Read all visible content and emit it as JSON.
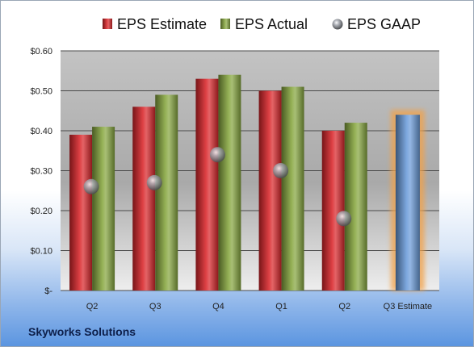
{
  "company": "Skyworks Solutions",
  "chart_data": {
    "type": "bar",
    "categories": [
      "Q2",
      "Q3",
      "Q4",
      "Q1",
      "Q2",
      "Q3 Estimate"
    ],
    "series": [
      {
        "name": "EPS Estimate",
        "values": [
          0.39,
          0.46,
          0.53,
          0.5,
          0.4,
          null
        ],
        "color": "#d9262b"
      },
      {
        "name": "EPS Actual",
        "values": [
          0.41,
          0.49,
          0.54,
          0.51,
          0.42,
          null
        ],
        "color": "#86a63f"
      },
      {
        "name": "EPS GAAP",
        "values": [
          0.26,
          0.27,
          0.34,
          0.3,
          0.18,
          null
        ],
        "color": "#a9adb5",
        "marker": "sphere"
      }
    ],
    "estimate_bar": {
      "category": "Q3 Estimate",
      "value": 0.44,
      "color": "#6a9bd9",
      "glow": "#f2a24a"
    },
    "y_ticks": [
      "$-",
      "$0.10",
      "$0.20",
      "$0.30",
      "$0.40",
      "$0.50",
      "$0.60"
    ],
    "ylim": [
      0,
      0.6
    ],
    "grid": true,
    "legend_position": "top"
  }
}
